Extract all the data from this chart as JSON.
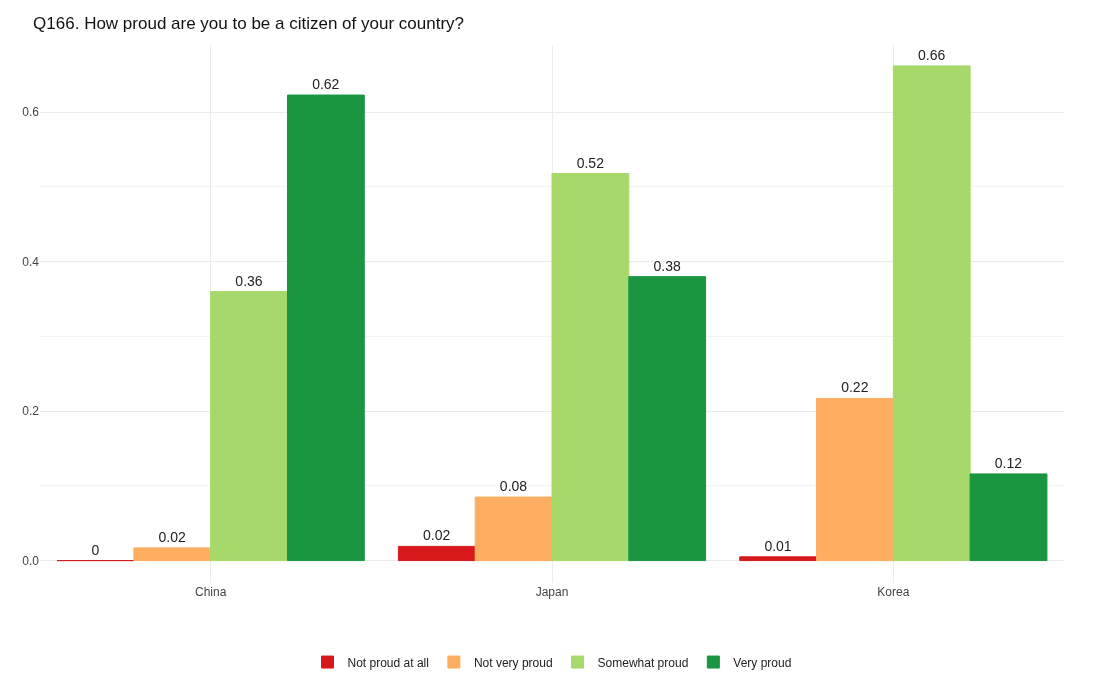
{
  "chart_data": {
    "type": "bar",
    "title": "Q166. How proud are you to be a citizen of your country?",
    "categories": [
      "China",
      "Japan",
      "Korea"
    ],
    "series": [
      {
        "name": "Not proud at all",
        "color": "#d7191c",
        "values": [
          0,
          0.019,
          0.005
        ],
        "value_labels": [
          "0",
          "0.02",
          "0.01"
        ]
      },
      {
        "name": "Not very proud",
        "color": "#fdae61",
        "values": [
          0.017,
          0.085,
          0.217
        ],
        "value_labels": [
          "0.02",
          "0.08",
          "0.22"
        ]
      },
      {
        "name": "Somewhat proud",
        "color": "#a6d96a",
        "values": [
          0.36,
          0.518,
          0.662
        ],
        "value_labels": [
          "0.36",
          "0.52",
          "0.66"
        ]
      },
      {
        "name": "Very proud",
        "color": "#1a9641",
        "values": [
          0.623,
          0.38,
          0.116
        ],
        "value_labels": [
          "0.62",
          "0.38",
          "0.12"
        ]
      }
    ],
    "ylim": [
      -0.03,
      0.69
    ],
    "yticks": [
      {
        "value": 0,
        "label": "0.0"
      },
      {
        "value": 0.2,
        "label": "0.2"
      },
      {
        "value": 0.4,
        "label": "0.4"
      },
      {
        "value": 0.6,
        "label": "0.6"
      }
    ],
    "grid": true,
    "legend": "bottom"
  }
}
